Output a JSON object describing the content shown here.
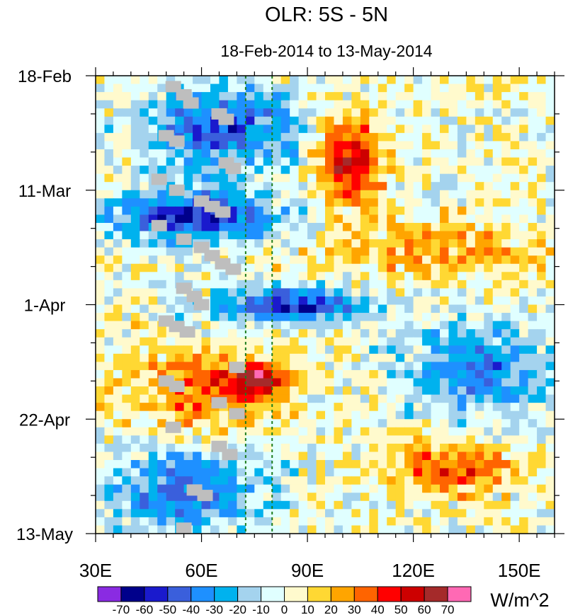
{
  "chart_data": {
    "type": "heatmap",
    "title": "OLR: 5S - 5N",
    "subtitle": "18-Feb-2014 to 13-May-2014",
    "x_axis": {
      "range": [
        30,
        160
      ],
      "ticks": [
        30,
        60,
        90,
        120,
        150
      ],
      "tick_labels": [
        "30E",
        "60E",
        "90E",
        "120E",
        "150E"
      ]
    },
    "y_axis": {
      "range_days": [
        0,
        84
      ],
      "reversed": true,
      "ticks_days": [
        0,
        21,
        42,
        63,
        84
      ],
      "tick_labels": [
        "18-Feb",
        "11-Mar",
        "1-Apr",
        "22-Apr",
        "13-May"
      ]
    },
    "reference_lines_lon": [
      72.5,
      80
    ],
    "colorbar": {
      "units": "W/m^2",
      "levels": [
        -70,
        -60,
        -50,
        -40,
        -30,
        -20,
        -10,
        0,
        10,
        20,
        30,
        40,
        50,
        60,
        70
      ],
      "level_labels": [
        "-70",
        "-60",
        "-50",
        "-40",
        "-30",
        "-20",
        "-10",
        "0",
        "10",
        "20",
        "30",
        "40",
        "50",
        "60",
        "70"
      ],
      "colors": [
        "#8a2be2",
        "#00008b",
        "#1a1acd",
        "#3a5fdc",
        "#1e90ff",
        "#00b2ee",
        "#a4d3ee",
        "#e0ffff",
        "#fffacd",
        "#ffd833",
        "#ffa500",
        "#ff6400",
        "#ff0000",
        "#cd0000",
        "#a52a2a",
        "#ff69b4"
      ]
    },
    "grid": {
      "lon_step": 2.5,
      "day_step": 1.5,
      "lons": [
        30,
        32.5,
        35,
        37.5,
        40,
        42.5,
        45,
        47.5,
        50,
        52.5,
        55,
        57.5,
        60,
        62.5,
        65,
        67.5,
        70,
        72.5,
        75,
        77.5,
        80,
        82.5,
        85,
        87.5,
        90,
        92.5,
        95,
        97.5,
        100,
        102.5,
        105,
        107.5,
        110,
        112.5,
        115,
        117.5,
        120,
        122.5,
        125,
        127.5,
        130,
        132.5,
        135,
        137.5,
        140,
        142.5,
        145,
        147.5,
        150,
        152.5,
        155,
        157.5
      ],
      "days": [
        0,
        1.5,
        3,
        4.5,
        6,
        7.5,
        9,
        10.5,
        12,
        13.5,
        15,
        16.5,
        18,
        19.5,
        21,
        22.5,
        24,
        25.5,
        27,
        28.5,
        30,
        31.5,
        33,
        34.5,
        36,
        37.5,
        39,
        40.5,
        42,
        43.5,
        45,
        46.5,
        48,
        49.5,
        51,
        52.5,
        54,
        55.5,
        57,
        58.5,
        60,
        61.5,
        63,
        64.5,
        66,
        67.5,
        69,
        70.5,
        72,
        73.5,
        75,
        76.5,
        78,
        79.5,
        81,
        82.5
      ],
      "anomaly_patterns": [
        {
          "kind": "enhanced convection",
          "lon_start": 40,
          "lon_end": 90,
          "day_start": 0,
          "day_end": 18,
          "value": -45
        },
        {
          "kind": "enhanced convection",
          "lon_start": 30,
          "lon_end": 85,
          "day_start": 20,
          "day_end": 30,
          "value": -55
        },
        {
          "kind": "enhanced convection",
          "lon_start": 60,
          "lon_end": 110,
          "day_start": 38,
          "day_end": 45,
          "value": -55
        },
        {
          "kind": "enhanced convection",
          "lon_start": 115,
          "lon_end": 160,
          "day_start": 44,
          "day_end": 62,
          "value": -40
        },
        {
          "kind": "enhanced convection",
          "lon_start": 30,
          "lon_end": 80,
          "day_start": 66,
          "day_end": 84,
          "value": -40
        },
        {
          "kind": "suppressed convection",
          "lon_start": 90,
          "lon_end": 110,
          "day_start": 5,
          "day_end": 25,
          "value": 55
        },
        {
          "kind": "suppressed convection",
          "lon_start": 90,
          "lon_end": 160,
          "day_start": 25,
          "day_end": 38,
          "value": 25
        },
        {
          "kind": "suppressed convection",
          "lon_start": 35,
          "lon_end": 85,
          "day_start": 48,
          "day_end": 66,
          "value": 35
        },
        {
          "kind": "suppressed convection",
          "lon_start": 65,
          "lon_end": 85,
          "day_start": 52,
          "day_end": 58,
          "value": 50
        },
        {
          "kind": "suppressed convection",
          "lon_start": 110,
          "lon_end": 150,
          "day_start": 66,
          "day_end": 77,
          "value": 40
        }
      ]
    },
    "missing_cells": [
      {
        "lon": 52,
        "day": 2
      },
      {
        "lon": 55,
        "day": 3.5
      },
      {
        "lon": 57,
        "day": 5
      },
      {
        "lon": 65,
        "day": 7
      },
      {
        "lon": 67,
        "day": 8
      },
      {
        "lon": 50,
        "day": 11
      },
      {
        "lon": 53,
        "day": 12
      },
      {
        "lon": 67,
        "day": 16
      },
      {
        "lon": 69,
        "day": 17
      },
      {
        "lon": 48,
        "day": 19
      },
      {
        "lon": 53,
        "day": 21
      },
      {
        "lon": 60,
        "day": 23
      },
      {
        "lon": 63,
        "day": 24
      },
      {
        "lon": 66,
        "day": 25
      },
      {
        "lon": 48,
        "day": 27.5
      },
      {
        "lon": 55,
        "day": 30
      },
      {
        "lon": 60,
        "day": 31.5
      },
      {
        "lon": 63,
        "day": 33
      },
      {
        "lon": 66,
        "day": 34.5
      },
      {
        "lon": 69,
        "day": 35.5
      },
      {
        "lon": 55,
        "day": 39
      },
      {
        "lon": 58,
        "day": 40.5
      },
      {
        "lon": 60,
        "day": 42
      },
      {
        "lon": 50,
        "day": 45
      },
      {
        "lon": 53,
        "day": 46
      },
      {
        "lon": 56,
        "day": 47
      },
      {
        "lon": 70,
        "day": 53.5
      },
      {
        "lon": 50,
        "day": 56
      },
      {
        "lon": 53,
        "day": 57
      },
      {
        "lon": 65,
        "day": 60
      },
      {
        "lon": 70,
        "day": 62
      },
      {
        "lon": 52,
        "day": 64.5
      },
      {
        "lon": 65,
        "day": 68
      },
      {
        "lon": 68,
        "day": 69.5
      },
      {
        "lon": 58,
        "day": 76
      },
      {
        "lon": 61,
        "day": 77
      },
      {
        "lon": 55,
        "day": 83
      }
    ]
  }
}
